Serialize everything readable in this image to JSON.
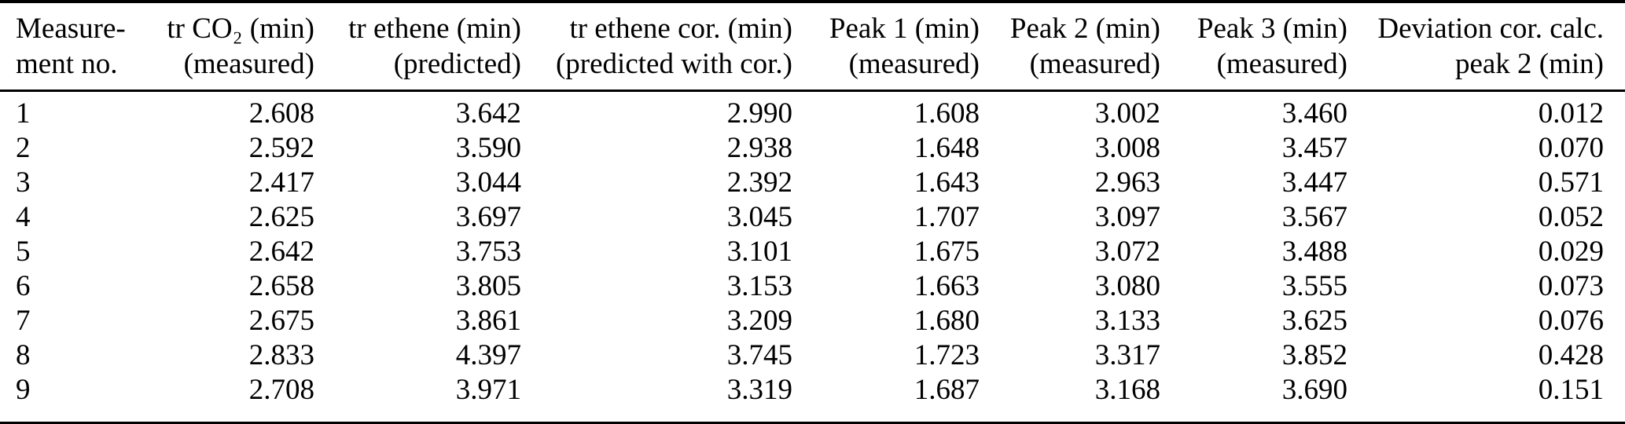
{
  "colors": {
    "background": "#ffffff",
    "text": "#000000",
    "rule": "#000000"
  },
  "table": {
    "columns": [
      {
        "id": "measurement-no",
        "header": "Measure-\nment no.",
        "align": "left"
      },
      {
        "id": "tr-co2-measured",
        "header": "tr CO₂ (min)\n(measured)",
        "align": "right"
      },
      {
        "id": "tr-ethene-pred",
        "header": "tr ethene (min)\n(predicted)",
        "align": "right"
      },
      {
        "id": "tr-ethene-cor",
        "header": "tr ethene cor. (min)\n(predicted with cor.)",
        "align": "right"
      },
      {
        "id": "peak1-measured",
        "header": "Peak 1 (min)\n(measured)",
        "align": "right"
      },
      {
        "id": "peak2-measured",
        "header": "Peak 2 (min)\n(measured)",
        "align": "right"
      },
      {
        "id": "peak3-measured",
        "header": "Peak 3 (min)\n(measured)",
        "align": "right"
      },
      {
        "id": "deviation-peak2",
        "header": "Deviation cor. calc.\npeak 2 (min)",
        "align": "right"
      }
    ],
    "rows": [
      [
        "1",
        "2.608",
        "3.642",
        "2.990",
        "1.608",
        "3.002",
        "3.460",
        "0.012"
      ],
      [
        "2",
        "2.592",
        "3.590",
        "2.938",
        "1.648",
        "3.008",
        "3.457",
        "0.070"
      ],
      [
        "3",
        "2.417",
        "3.044",
        "2.392",
        "1.643",
        "2.963",
        "3.447",
        "0.571"
      ],
      [
        "4",
        "2.625",
        "3.697",
        "3.045",
        "1.707",
        "3.097",
        "3.567",
        "0.052"
      ],
      [
        "5",
        "2.642",
        "3.753",
        "3.101",
        "1.675",
        "3.072",
        "3.488",
        "0.029"
      ],
      [
        "6",
        "2.658",
        "3.805",
        "3.153",
        "1.663",
        "3.080",
        "3.555",
        "0.073"
      ],
      [
        "7",
        "2.675",
        "3.861",
        "3.209",
        "1.680",
        "3.133",
        "3.625",
        "0.076"
      ],
      [
        "8",
        "2.833",
        "4.397",
        "3.745",
        "1.723",
        "3.317",
        "3.852",
        "0.428"
      ],
      [
        "9",
        "2.708",
        "3.971",
        "3.319",
        "1.687",
        "3.168",
        "3.690",
        "0.151"
      ]
    ]
  }
}
